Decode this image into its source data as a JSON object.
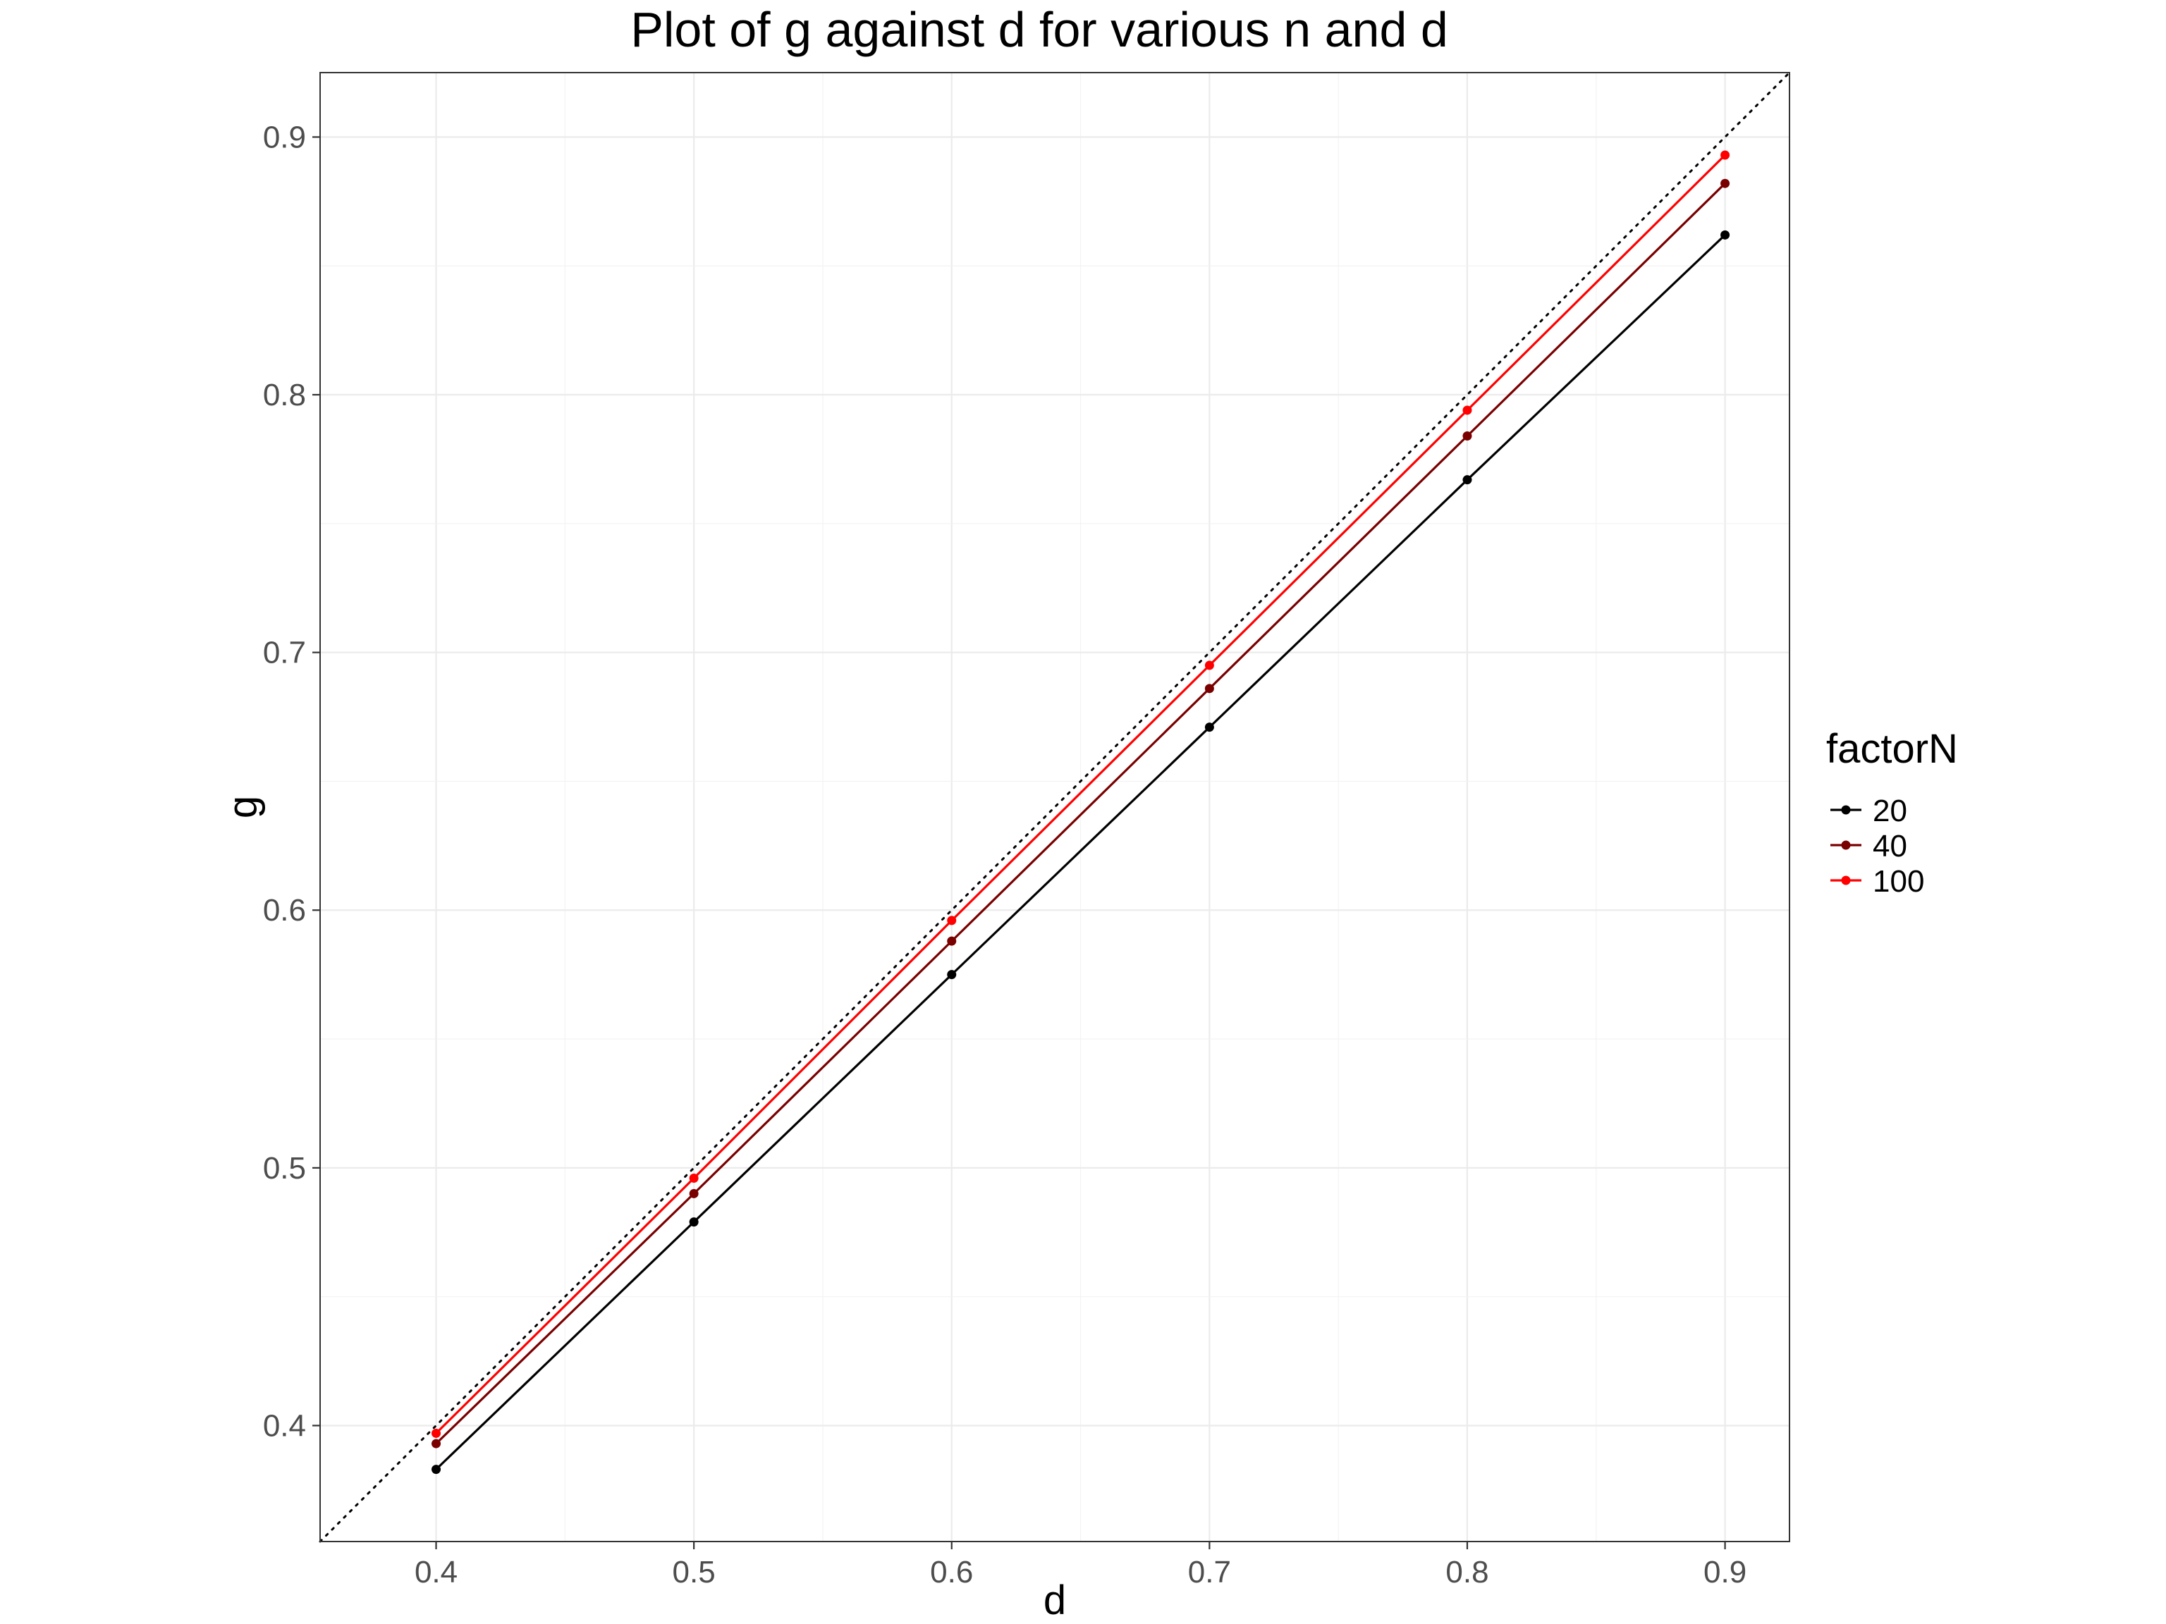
{
  "chart_data": {
    "type": "line",
    "title": "Plot of g against d for various n and d",
    "xlabel": "d",
    "ylabel": "g",
    "xlim": [
      0.355,
      0.925
    ],
    "ylim": [
      0.355,
      0.925
    ],
    "x": [
      0.4,
      0.5,
      0.6,
      0.7,
      0.8,
      0.9
    ],
    "x_ticks": [
      0.4,
      0.5,
      0.6,
      0.7,
      0.8,
      0.9
    ],
    "y_ticks": [
      0.4,
      0.5,
      0.6,
      0.7,
      0.8,
      0.9
    ],
    "x_tick_labels": [
      "0.4",
      "0.5",
      "0.6",
      "0.7",
      "0.8",
      "0.9"
    ],
    "y_tick_labels": [
      "0.4",
      "0.5",
      "0.6",
      "0.7",
      "0.8",
      "0.9"
    ],
    "grid": true,
    "reference_line": {
      "style": "dotted",
      "slope": 1,
      "intercept": 0,
      "color": "#000000"
    },
    "legend": {
      "title": "factorN",
      "placement": "right"
    },
    "series": [
      {
        "name": "20",
        "color": "#000000",
        "values": [
          0.383,
          0.479,
          0.575,
          0.671,
          0.767,
          0.862
        ]
      },
      {
        "name": "40",
        "color": "#7a0000",
        "values": [
          0.393,
          0.49,
          0.588,
          0.686,
          0.784,
          0.882
        ]
      },
      {
        "name": "100",
        "color": "#ff0000",
        "values": [
          0.397,
          0.496,
          0.596,
          0.695,
          0.794,
          0.893
        ]
      }
    ]
  }
}
